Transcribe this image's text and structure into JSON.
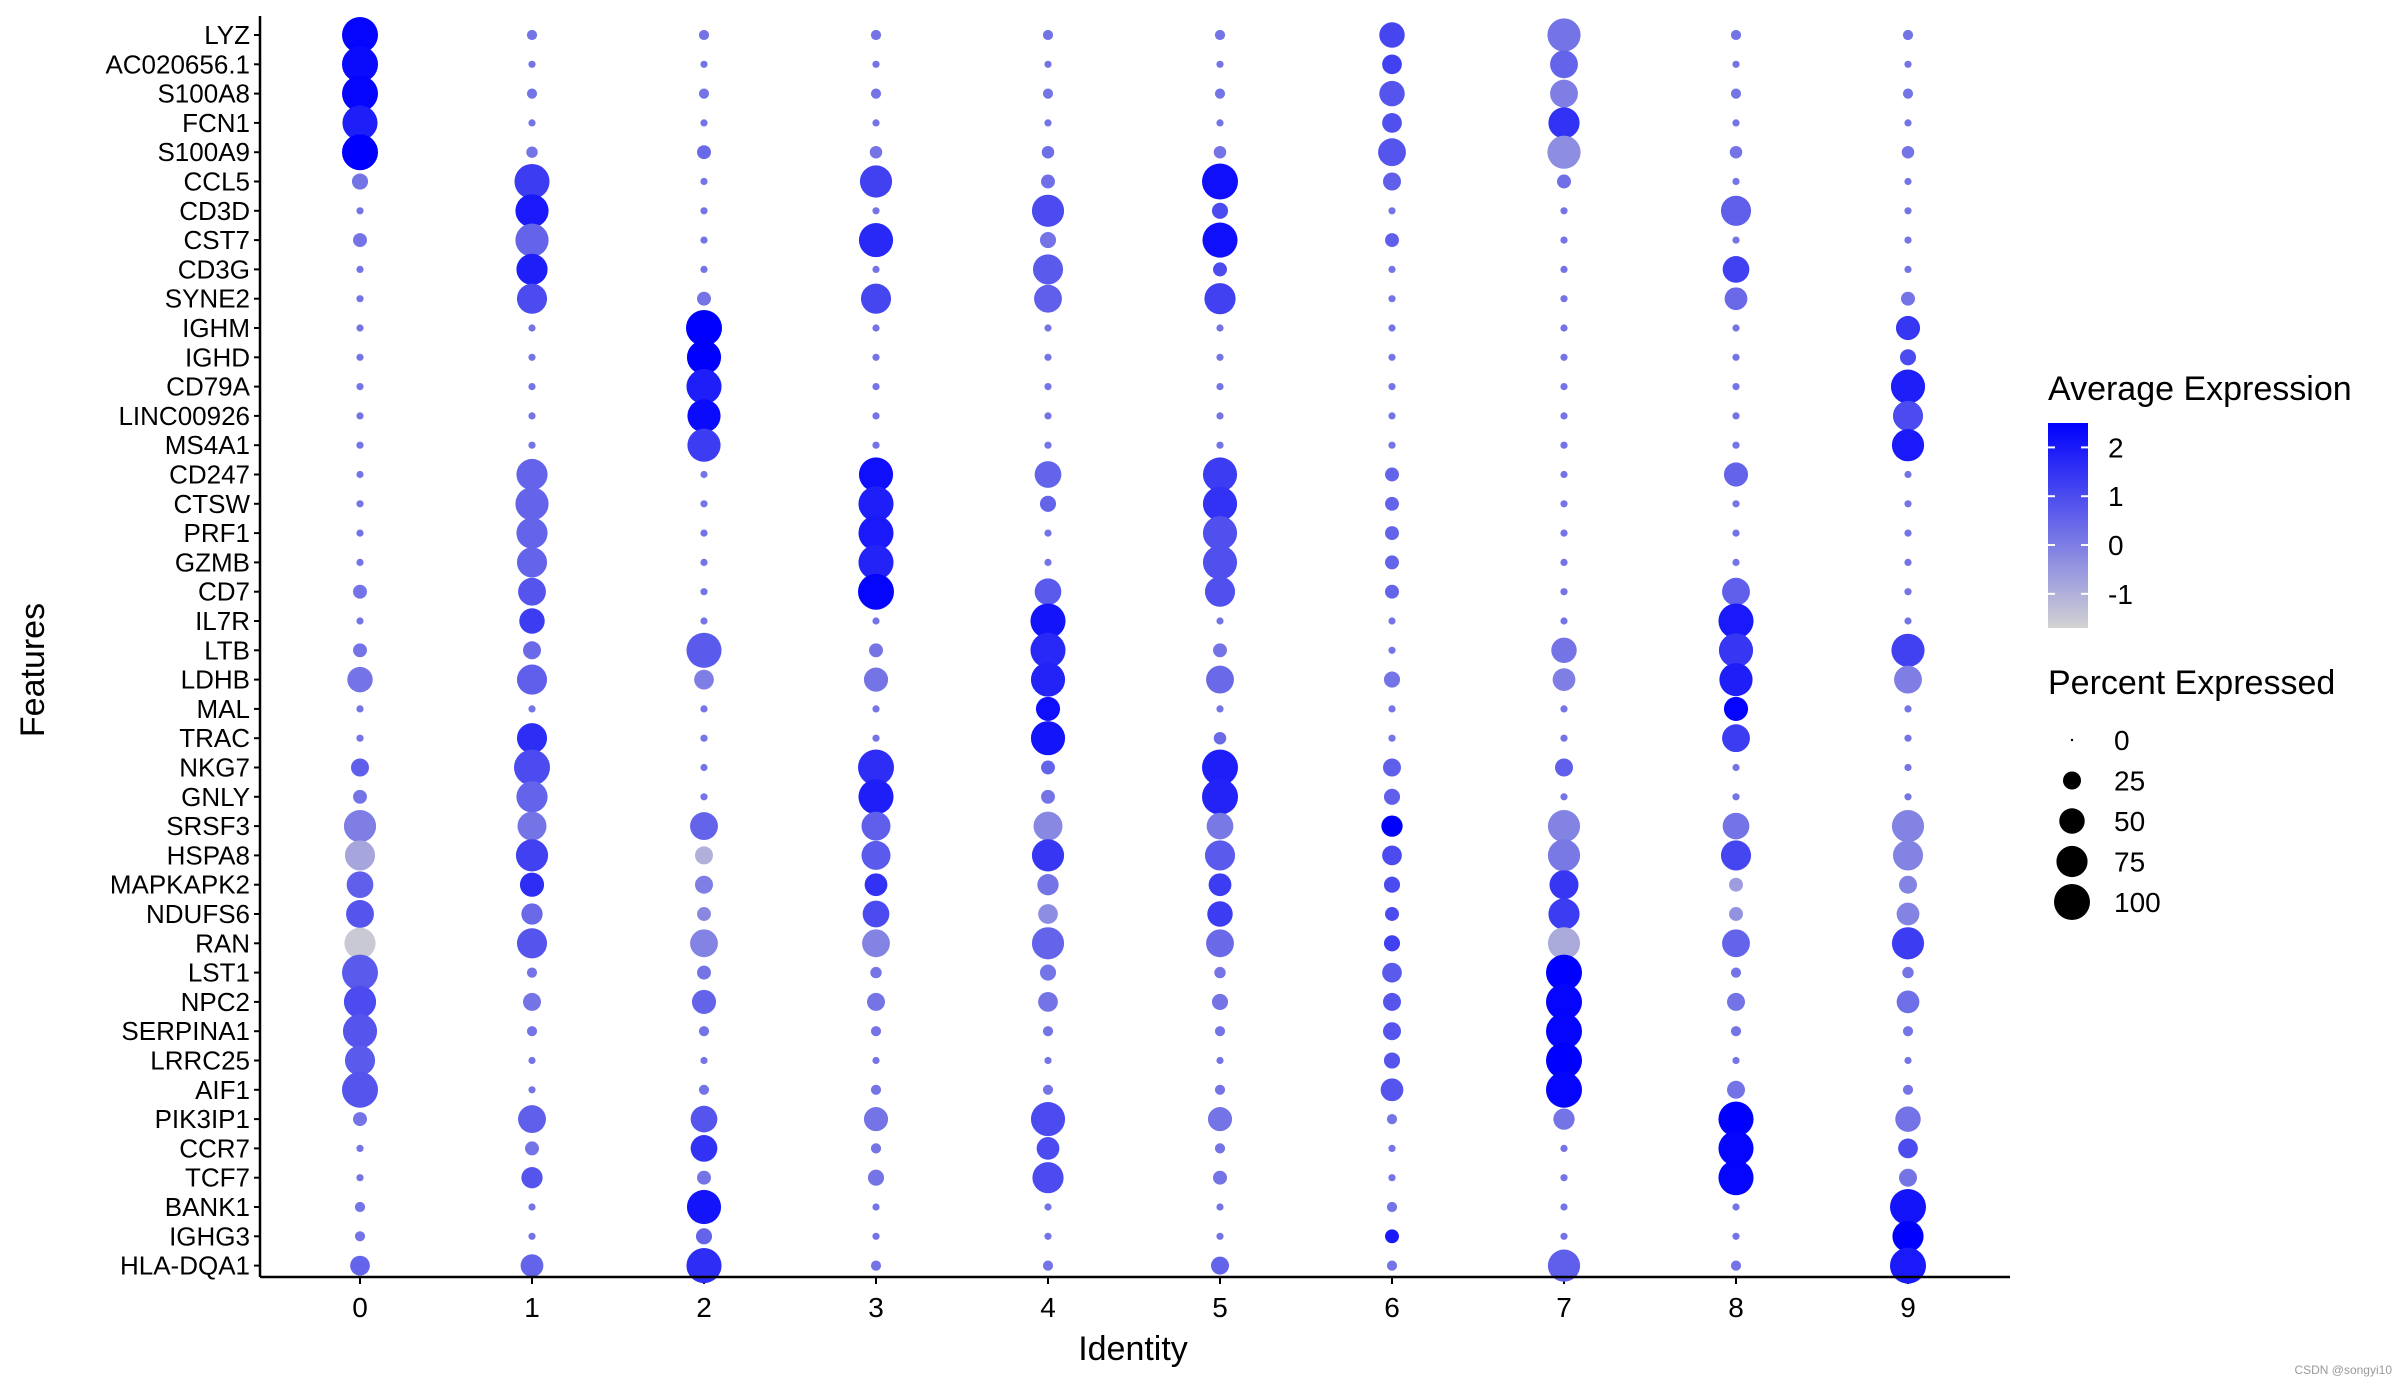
{
  "chart_data": {
    "type": "dot",
    "xlabel": "Identity",
    "ylabel": "Features",
    "categories": [
      "0",
      "1",
      "2",
      "3",
      "4",
      "5",
      "6",
      "7",
      "8",
      "9"
    ],
    "features": [
      "LYZ",
      "AC020656.1",
      "S100A8",
      "FCN1",
      "S100A9",
      "CCL5",
      "CD3D",
      "CST7",
      "CD3G",
      "SYNE2",
      "IGHM",
      "IGHD",
      "CD79A",
      "LINC00926",
      "MS4A1",
      "CD247",
      "CTSW",
      "PRF1",
      "GZMB",
      "CD7",
      "IL7R",
      "LTB",
      "LDHB",
      "MAL",
      "TRAC",
      "NKG7",
      "GNLY",
      "SRSF3",
      "HSPA8",
      "MAPKAPK2",
      "NDUFS6",
      "RAN",
      "LST1",
      "NPC2",
      "SERPINA1",
      "LRRC25",
      "AIF1",
      "PIK3IP1",
      "CCR7",
      "TCF7",
      "BANK1",
      "IGHG3",
      "HLA-DQA1"
    ],
    "percent_expressed": [
      [
        100,
        8,
        8,
        8,
        8,
        8,
        50,
        85,
        8,
        8
      ],
      [
        100,
        4,
        4,
        4,
        4,
        4,
        30,
        60,
        4,
        4
      ],
      [
        100,
        8,
        8,
        8,
        8,
        8,
        50,
        60,
        8,
        8
      ],
      [
        95,
        4,
        4,
        4,
        4,
        4,
        30,
        75,
        4,
        4
      ],
      [
        100,
        10,
        15,
        12,
        12,
        12,
        60,
        85,
        12,
        12
      ],
      [
        20,
        95,
        4,
        80,
        15,
        100,
        25,
        15,
        4,
        4
      ],
      [
        4,
        85,
        4,
        4,
        80,
        20,
        4,
        4,
        70,
        4
      ],
      [
        15,
        85,
        4,
        90,
        20,
        95,
        15,
        4,
        4,
        4
      ],
      [
        4,
        75,
        4,
        4,
        70,
        15,
        4,
        4,
        55,
        4
      ],
      [
        4,
        70,
        15,
        70,
        60,
        75,
        4,
        4,
        40,
        15
      ],
      [
        4,
        4,
        100,
        4,
        4,
        4,
        4,
        4,
        4,
        45
      ],
      [
        4,
        4,
        90,
        4,
        4,
        4,
        4,
        4,
        4,
        20
      ],
      [
        4,
        4,
        95,
        4,
        4,
        4,
        4,
        4,
        4,
        90
      ],
      [
        4,
        4,
        85,
        4,
        4,
        4,
        4,
        4,
        4,
        70
      ],
      [
        4,
        4,
        85,
        4,
        4,
        4,
        4,
        4,
        4,
        80
      ],
      [
        4,
        75,
        4,
        90,
        55,
        90,
        15,
        4,
        45,
        4
      ],
      [
        4,
        85,
        4,
        95,
        20,
        90,
        15,
        4,
        4,
        4
      ],
      [
        4,
        75,
        4,
        95,
        4,
        90,
        15,
        4,
        4,
        4
      ],
      [
        4,
        70,
        4,
        95,
        4,
        90,
        15,
        4,
        4,
        4
      ],
      [
        15,
        60,
        4,
        100,
        55,
        70,
        15,
        4,
        60,
        4
      ],
      [
        4,
        50,
        4,
        4,
        95,
        4,
        4,
        4,
        95,
        4
      ],
      [
        15,
        25,
        95,
        15,
        95,
        15,
        4,
        50,
        90,
        85
      ],
      [
        50,
        70,
        30,
        45,
        90,
        60,
        20,
        40,
        85,
        60
      ],
      [
        4,
        4,
        4,
        4,
        45,
        4,
        4,
        4,
        45,
        4
      ],
      [
        4,
        70,
        4,
        4,
        90,
        12,
        4,
        4,
        60,
        4
      ],
      [
        25,
        100,
        4,
        100,
        15,
        100,
        25,
        25,
        4,
        4
      ],
      [
        15,
        75,
        4,
        95,
        15,
        100,
        20,
        4,
        4,
        4
      ],
      [
        80,
        65,
        60,
        65,
        65,
        55,
        35,
        80,
        55,
        80
      ],
      [
        70,
        80,
        25,
        65,
        80,
        70,
        30,
        80,
        70,
        70
      ],
      [
        55,
        45,
        25,
        40,
        35,
        40,
        20,
        65,
        15,
        25
      ],
      [
        60,
        35,
        15,
        55,
        30,
        50,
        15,
        75,
        15,
        40
      ],
      [
        75,
        70,
        60,
        60,
        80,
        60,
        20,
        80,
        60,
        80
      ],
      [
        100,
        8,
        15,
        10,
        20,
        10,
        30,
        100,
        8,
        10
      ],
      [
        80,
        25,
        45,
        25,
        30,
        20,
        25,
        100,
        25,
        40
      ],
      [
        90,
        8,
        8,
        8,
        8,
        8,
        25,
        100,
        8,
        8
      ],
      [
        70,
        4,
        4,
        4,
        4,
        4,
        20,
        100,
        4,
        4
      ],
      [
        100,
        4,
        8,
        8,
        8,
        8,
        40,
        100,
        25,
        8
      ],
      [
        15,
        60,
        55,
        45,
        90,
        45,
        8,
        35,
        95,
        50
      ],
      [
        4,
        15,
        55,
        8,
        40,
        8,
        4,
        4,
        95,
        30
      ],
      [
        4,
        35,
        15,
        20,
        75,
        15,
        4,
        4,
        95,
        25
      ],
      [
        8,
        4,
        90,
        4,
        4,
        4,
        8,
        4,
        4,
        100
      ],
      [
        8,
        4,
        20,
        4,
        4,
        4,
        15,
        4,
        4,
        75
      ],
      [
        30,
        40,
        95,
        8,
        8,
        25,
        8,
        80,
        8,
        100
      ]
    ],
    "average_expression": [
      [
        2.4,
        0.2,
        0.2,
        0.2,
        0.2,
        0.2,
        1.1,
        0.2,
        0.2,
        0.2
      ],
      [
        2.3,
        0.2,
        0.2,
        0.2,
        0.2,
        0.2,
        1.2,
        0.5,
        0.2,
        0.2
      ],
      [
        2.4,
        0.2,
        0.2,
        0.2,
        0.2,
        0.2,
        0.8,
        0,
        0.2,
        0.2
      ],
      [
        1.9,
        0.2,
        0.2,
        0.2,
        0.2,
        0.2,
        0.9,
        1.5,
        0.2,
        0.2
      ],
      [
        2.5,
        0.2,
        0.4,
        0.2,
        0.3,
        0.2,
        0.8,
        -0.3,
        0.2,
        0.2
      ],
      [
        0.2,
        1.3,
        0.2,
        1.2,
        0.3,
        2.2,
        0.6,
        0.3,
        0.2,
        0.2
      ],
      [
        0.2,
        2.0,
        0.2,
        0.2,
        1.0,
        1.0,
        0.2,
        0.2,
        0.6,
        0.2
      ],
      [
        0.2,
        0.5,
        0.2,
        1.7,
        0.2,
        2.2,
        0.6,
        0.2,
        0.2,
        0.2
      ],
      [
        0.2,
        1.9,
        0.2,
        0.2,
        0.7,
        1.0,
        0.2,
        0.2,
        1.2,
        0.2
      ],
      [
        0.2,
        1.0,
        0.2,
        1.1,
        0.6,
        1.2,
        0.2,
        0.2,
        0.4,
        0.2
      ],
      [
        0.2,
        0.2,
        2.5,
        0.2,
        0.2,
        0.2,
        0.2,
        0.2,
        0.2,
        1.4
      ],
      [
        0.2,
        0.2,
        2.5,
        0.2,
        0.2,
        0.2,
        0.2,
        0.2,
        0.2,
        1.0
      ],
      [
        0.2,
        0.2,
        1.9,
        0.2,
        0.2,
        0.2,
        0.2,
        0.2,
        0.2,
        1.9
      ],
      [
        0.2,
        0.2,
        2.3,
        0.2,
        0.2,
        0.2,
        0.2,
        0.2,
        0.2,
        1.0
      ],
      [
        0.2,
        0.2,
        1.3,
        0.2,
        0.2,
        0.2,
        0.2,
        0.2,
        0.2,
        2.0
      ],
      [
        0.2,
        0.5,
        0.2,
        2.2,
        0.5,
        1.3,
        0.5,
        0.2,
        0.5,
        0.2
      ],
      [
        0.2,
        0.5,
        0.2,
        1.9,
        0.5,
        1.5,
        0.5,
        0.2,
        0.2,
        0.2
      ],
      [
        0.2,
        0.5,
        0.2,
        2.0,
        0.2,
        0.9,
        0.5,
        0.2,
        0.2,
        0.2
      ],
      [
        0.2,
        0.5,
        0.2,
        1.8,
        0.2,
        0.9,
        0.5,
        0.2,
        0.2,
        0.2
      ],
      [
        0.2,
        0.8,
        0.2,
        2.4,
        0.7,
        0.9,
        0.5,
        0.2,
        0.6,
        0.2
      ],
      [
        0.2,
        1.3,
        0.2,
        0.2,
        2.1,
        0.2,
        0.2,
        0.2,
        2.0,
        0.2
      ],
      [
        0.2,
        0.4,
        0.7,
        0.2,
        1.7,
        0.2,
        0.2,
        0.2,
        1.4,
        1.2
      ],
      [
        0.2,
        0.6,
        0,
        0.2,
        1.8,
        0.4,
        0.2,
        0,
        1.9,
        0
      ],
      [
        0.2,
        0.2,
        0.2,
        0.2,
        2.2,
        0.2,
        0.2,
        0.2,
        2.4,
        0.2
      ],
      [
        0.2,
        1.6,
        0.2,
        0.2,
        2.1,
        0.4,
        0.2,
        0.2,
        1.3,
        0.2
      ],
      [
        0.6,
        1.0,
        0.2,
        1.6,
        0.5,
        1.9,
        0.6,
        0.6,
        0.2,
        0.2
      ],
      [
        0.2,
        0.5,
        0.2,
        1.9,
        0.2,
        1.8,
        0.6,
        0.2,
        0.2,
        0.2
      ],
      [
        0,
        0.2,
        0.5,
        0.6,
        -0.2,
        0.1,
        2.6,
        -0.1,
        0.2,
        -0.1
      ],
      [
        -0.8,
        1.2,
        -1.0,
        0.7,
        1.4,
        0.7,
        1.0,
        0.1,
        1.1,
        -0.1
      ],
      [
        0.6,
        1.6,
        0,
        1.5,
        0.2,
        1.3,
        1.0,
        1.4,
        -0.6,
        -0.1
      ],
      [
        0.8,
        0.4,
        -0.2,
        1.0,
        -0.3,
        1.3,
        1.0,
        1.3,
        -0.4,
        -0.1
      ],
      [
        -1.5,
        0.8,
        -0.1,
        -0.1,
        0.5,
        0.4,
        1.2,
        -0.9,
        0.5,
        1.3
      ],
      [
        0.7,
        0.2,
        0.2,
        0.2,
        0.2,
        0.2,
        0.7,
        2.5,
        0.2,
        0.2
      ],
      [
        1.0,
        0.2,
        0.5,
        0.2,
        0.2,
        0.2,
        0.8,
        2.4,
        0.2,
        0.3
      ],
      [
        0.8,
        0.2,
        0.2,
        0.2,
        0.2,
        0.2,
        0.8,
        2.4,
        0.2,
        0.2
      ],
      [
        0.7,
        0.2,
        0.2,
        0.2,
        0.2,
        0.2,
        0.8,
        2.5,
        0.2,
        0.2
      ],
      [
        0.8,
        0.2,
        0.2,
        0.2,
        0.2,
        0.2,
        0.8,
        2.4,
        0.2,
        0.2
      ],
      [
        0.2,
        0.6,
        0.8,
        0.2,
        1.0,
        0.2,
        0.2,
        0.2,
        2.5,
        0.2
      ],
      [
        0.2,
        0.2,
        1.5,
        0.2,
        1.0,
        0.2,
        0.2,
        0.2,
        2.4,
        1.0
      ],
      [
        0.2,
        0.8,
        0.2,
        0.2,
        1.0,
        0.2,
        0.2,
        0.2,
        2.4,
        0.2
      ],
      [
        0.2,
        0.2,
        2.1,
        0.2,
        0.2,
        0.2,
        0.2,
        0.2,
        0.2,
        2.1
      ],
      [
        0.2,
        0.2,
        0.5,
        0.2,
        0.2,
        0.2,
        2.0,
        0.2,
        0.2,
        2.5
      ],
      [
        0.5,
        0.5,
        1.6,
        0.2,
        0.2,
        0.5,
        0.2,
        0.6,
        0.2,
        2.0
      ]
    ],
    "legend": {
      "color_title": "Average Expression",
      "color_ticks": [
        2,
        1,
        0,
        -1
      ],
      "color_tick_labels": [
        "2",
        "1",
        "0",
        "-1"
      ],
      "color_range": [
        -1.7,
        2.5
      ],
      "color_low": "#d3d3d3",
      "color_high": "#0000ff",
      "size_title": "Percent Expressed",
      "size_ticks": [
        0,
        25,
        50,
        75,
        100
      ],
      "size_tick_labels": [
        "0",
        "25",
        "50",
        "75",
        "100"
      ],
      "placement": "right"
    },
    "watermark": "CSDN @songyi10",
    "grid": false
  }
}
